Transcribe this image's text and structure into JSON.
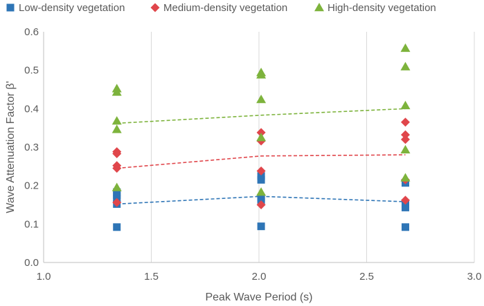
{
  "chart_data": {
    "type": "scatter",
    "title": "",
    "xlabel": "Peak Wave Period (s)",
    "ylabel": "Wave Attenuation Factor β'",
    "xlim": [
      1.0,
      3.0
    ],
    "ylim": [
      0.0,
      0.6
    ],
    "xticks": [
      "1.0",
      "1.5",
      "2.0",
      "2.5",
      "3.0"
    ],
    "yticks": [
      "0.0",
      "0.1",
      "0.2",
      "0.3",
      "0.4",
      "0.5",
      "0.6"
    ],
    "grid": "vertical",
    "legend_position": "top",
    "series": [
      {
        "name": "Low-density vegetation",
        "marker": "square",
        "color": "#2E75B6",
        "points": [
          {
            "x": 1.34,
            "y": 0.183
          },
          {
            "x": 1.34,
            "y": 0.175
          },
          {
            "x": 1.34,
            "y": 0.165
          },
          {
            "x": 1.34,
            "y": 0.152
          },
          {
            "x": 1.34,
            "y": 0.092
          },
          {
            "x": 2.01,
            "y": 0.225
          },
          {
            "x": 2.01,
            "y": 0.215
          },
          {
            "x": 2.01,
            "y": 0.168
          },
          {
            "x": 2.01,
            "y": 0.162
          },
          {
            "x": 2.01,
            "y": 0.094
          },
          {
            "x": 2.68,
            "y": 0.207
          },
          {
            "x": 2.68,
            "y": 0.152
          },
          {
            "x": 2.68,
            "y": 0.143
          },
          {
            "x": 2.68,
            "y": 0.092
          }
        ],
        "trend": [
          {
            "x": 1.34,
            "y": 0.152
          },
          {
            "x": 2.01,
            "y": 0.172
          },
          {
            "x": 2.68,
            "y": 0.158
          }
        ],
        "trend_color": "#2E75B6"
      },
      {
        "name": "Medium-density vegetation",
        "marker": "diamond",
        "color": "#E0464B",
        "points": [
          {
            "x": 1.34,
            "y": 0.288
          },
          {
            "x": 1.34,
            "y": 0.283
          },
          {
            "x": 1.34,
            "y": 0.252
          },
          {
            "x": 1.34,
            "y": 0.245
          },
          {
            "x": 1.34,
            "y": 0.156
          },
          {
            "x": 2.01,
            "y": 0.338
          },
          {
            "x": 2.01,
            "y": 0.316
          },
          {
            "x": 2.01,
            "y": 0.238
          },
          {
            "x": 2.01,
            "y": 0.15
          },
          {
            "x": 2.68,
            "y": 0.365
          },
          {
            "x": 2.68,
            "y": 0.332
          },
          {
            "x": 2.68,
            "y": 0.32
          },
          {
            "x": 2.68,
            "y": 0.215
          },
          {
            "x": 2.68,
            "y": 0.162
          }
        ],
        "trend": [
          {
            "x": 1.34,
            "y": 0.245
          },
          {
            "x": 2.01,
            "y": 0.277
          },
          {
            "x": 2.68,
            "y": 0.28
          }
        ],
        "trend_color": "#E0464B"
      },
      {
        "name": "High-density vegetation",
        "marker": "triangle",
        "color": "#7DB33C",
        "points": [
          {
            "x": 1.34,
            "y": 0.452
          },
          {
            "x": 1.34,
            "y": 0.443
          },
          {
            "x": 1.34,
            "y": 0.368
          },
          {
            "x": 1.34,
            "y": 0.346
          },
          {
            "x": 1.34,
            "y": 0.195
          },
          {
            "x": 2.01,
            "y": 0.494
          },
          {
            "x": 2.01,
            "y": 0.488
          },
          {
            "x": 2.01,
            "y": 0.424
          },
          {
            "x": 2.01,
            "y": 0.325
          },
          {
            "x": 2.01,
            "y": 0.183
          },
          {
            "x": 2.68,
            "y": 0.557
          },
          {
            "x": 2.68,
            "y": 0.509
          },
          {
            "x": 2.68,
            "y": 0.408
          },
          {
            "x": 2.68,
            "y": 0.293
          },
          {
            "x": 2.68,
            "y": 0.22
          }
        ],
        "trend": [
          {
            "x": 1.34,
            "y": 0.362
          },
          {
            "x": 2.01,
            "y": 0.383
          },
          {
            "x": 2.68,
            "y": 0.4
          }
        ],
        "trend_color": "#7DB33C"
      }
    ]
  }
}
